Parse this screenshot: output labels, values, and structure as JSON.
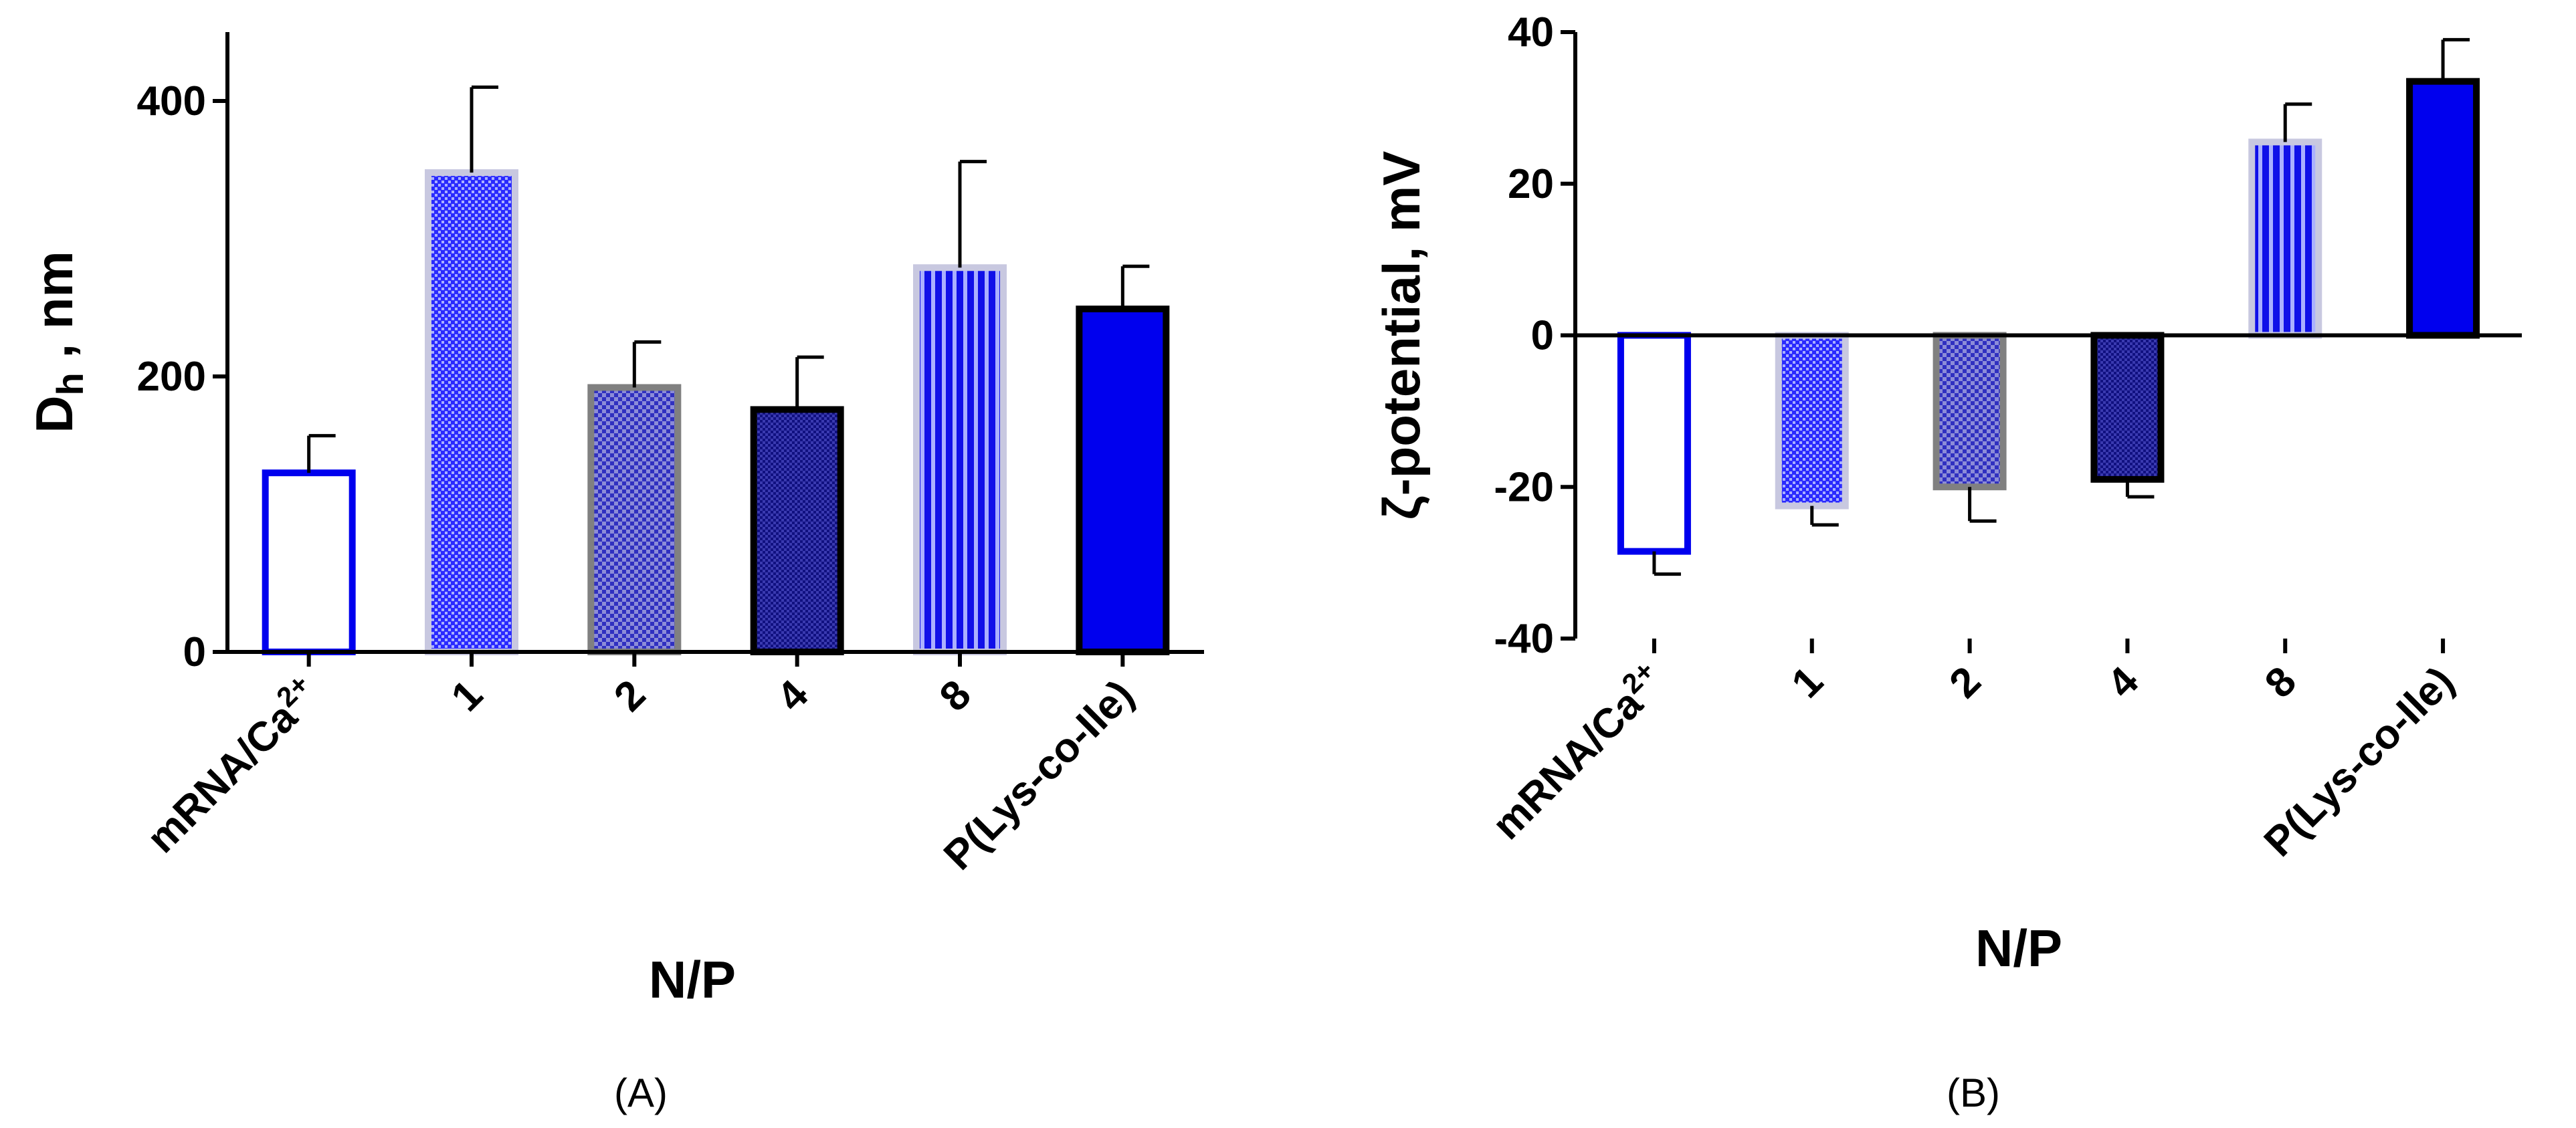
{
  "chart_data": [
    {
      "type": "bar",
      "panel_label": "(A)",
      "xlabel": "N/P",
      "ylabel": "D",
      "ylabel_sub": "h",
      "ylabel_suffix": " , nm",
      "ylim": [
        0,
        450
      ],
      "yticks": [
        0,
        200,
        400
      ],
      "categories": [
        "mRNA/Ca2+",
        "1",
        "2",
        "4",
        "8",
        "P(Lys-co-Ile)"
      ],
      "category_labels": [
        {
          "main": "mRNA/Ca",
          "sup": "2+"
        },
        {
          "main": "1"
        },
        {
          "main": "2"
        },
        {
          "main": "4"
        },
        {
          "main": "8"
        },
        {
          "main": "P(Lys-co-Ile)"
        }
      ],
      "values": [
        130,
        348,
        192,
        176,
        279,
        249
      ],
      "errors": [
        27,
        62,
        33,
        38,
        77,
        31
      ],
      "fills": [
        "open",
        "dots",
        "check",
        "check-dense",
        "stripes",
        "solid"
      ],
      "colors": {
        "edge_blue": "#0000ee",
        "gray_edge": "#808080",
        "light_edge": "#c8c8e0",
        "dark_edge": "#000000"
      }
    },
    {
      "type": "bar",
      "panel_label": "(B)",
      "xlabel": "N/P",
      "ylabel": "ζ-potential, mV",
      "ylim": [
        -40,
        40
      ],
      "yticks": [
        -40,
        -20,
        0,
        20,
        40
      ],
      "categories": [
        "mRNA/Ca2+",
        "1",
        "2",
        "4",
        "8",
        "P(Lys-co-Ile)"
      ],
      "category_labels": [
        {
          "main": "mRNA/Ca",
          "sup": "2+"
        },
        {
          "main": "1"
        },
        {
          "main": "2"
        },
        {
          "main": "4"
        },
        {
          "main": "8"
        },
        {
          "main": "P(Lys-co-Ile)"
        }
      ],
      "values": [
        -28.5,
        -22.5,
        -20,
        -19,
        25.5,
        33.5
      ],
      "errors": [
        3,
        2.5,
        4.5,
        2.3,
        5,
        5.5
      ],
      "fills": [
        "open",
        "dots",
        "check",
        "check-dense",
        "stripes",
        "solid"
      ],
      "colors": {
        "edge_blue": "#0000ee",
        "gray_edge": "#808080",
        "light_edge": "#c8c8e0",
        "dark_edge": "#000000"
      }
    }
  ]
}
